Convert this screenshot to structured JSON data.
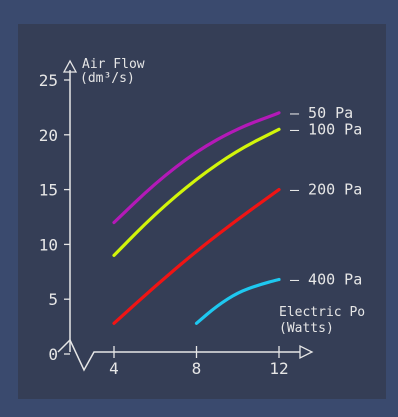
{
  "chart_data": {
    "type": "line",
    "title": "",
    "ylabel": "Air Flow",
    "ylabel_unit": "(dm³/s)",
    "xlabel": "Electric Po",
    "xlabel_unit": "(Watts)",
    "xlim": [
      2.5,
      13.5
    ],
    "ylim": [
      0,
      25
    ],
    "x_ticks": [
      4,
      8,
      12
    ],
    "y_ticks": [
      0,
      5,
      10,
      15,
      20,
      25
    ],
    "series": [
      {
        "name": "50 Pa",
        "color": "#b419b8",
        "x": [
          4,
          6,
          8,
          10,
          12
        ],
        "y": [
          12,
          15.6,
          18.5,
          20.6,
          22
        ]
      },
      {
        "name": "100 Pa",
        "color": "#d2f50a",
        "x": [
          4,
          6,
          8,
          10,
          12
        ],
        "y": [
          9,
          12.8,
          16,
          18.6,
          20.5
        ]
      },
      {
        "name": "200 Pa",
        "color": "#f01414",
        "x": [
          4,
          6,
          8,
          10,
          12
        ],
        "y": [
          2.8,
          6.2,
          9.4,
          12.3,
          15
        ]
      },
      {
        "name": "400 Pa",
        "color": "#1ec8f0",
        "x": [
          8,
          9,
          10,
          11,
          12
        ],
        "y": [
          2.8,
          4.4,
          5.6,
          6.3,
          6.8
        ]
      }
    ]
  },
  "colors": {
    "background": "#3a4a6e",
    "panel": "#353e56",
    "axis": "#e6e6e6"
  }
}
